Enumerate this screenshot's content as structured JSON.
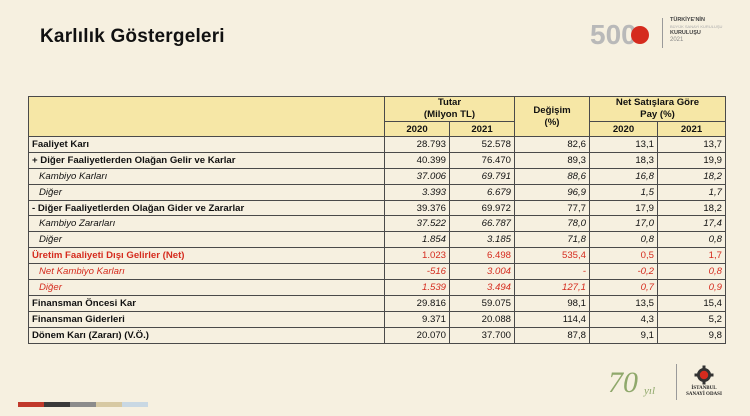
{
  "title": "Karlılık Göstergeleri",
  "logo500": {
    "number": "500",
    "line1": "TÜRKİYE'NİN",
    "line2": "BÜYÜK SANAYİ KURULUŞU",
    "line3": "KURULUŞU",
    "year": "2021"
  },
  "table": {
    "headers": {
      "tutar": "Tutar",
      "tutar_unit": "(Milyon TL)",
      "degisim": "Değişim",
      "degisim_unit": "(%)",
      "pay": "Net Satışlara Göre",
      "pay_unit": "Pay (%)",
      "y2020": "2020",
      "y2021": "2021",
      "p2020": "2020",
      "p2021": "2021"
    },
    "rows": [
      {
        "label": "Faaliyet Karı",
        "t2020": "28.793",
        "t2021": "52.578",
        "degisim": "82,6",
        "p2020": "13,1",
        "p2021": "13,7"
      },
      {
        "label": "+ Diğer Faaliyetlerden Olağan Gelir ve Karlar",
        "t2020": "40.399",
        "t2021": "76.470",
        "degisim": "89,3",
        "p2020": "18,3",
        "p2021": "19,9"
      },
      {
        "label": "Kambiyo Karları",
        "t2020": "37.006",
        "t2021": "69.791",
        "degisim": "88,6",
        "p2020": "16,8",
        "p2021": "18,2"
      },
      {
        "label": "Diğer",
        "t2020": "3.393",
        "t2021": "6.679",
        "degisim": "96,9",
        "p2020": "1,5",
        "p2021": "1,7"
      },
      {
        "label": "- Diğer Faaliyetlerden Olağan Gider ve Zararlar",
        "t2020": "39.376",
        "t2021": "69.972",
        "degisim": "77,7",
        "p2020": "17,9",
        "p2021": "18,2"
      },
      {
        "label": "Kambiyo Zararları",
        "t2020": "37.522",
        "t2021": "66.787",
        "degisim": "78,0",
        "p2020": "17,0",
        "p2021": "17,4"
      },
      {
        "label": "Diğer",
        "t2020": "1.854",
        "t2021": "3.185",
        "degisim": "71,8",
        "p2020": "0,8",
        "p2021": "0,8"
      },
      {
        "label": "Üretim Faaliyeti Dışı Gelirler (Net)",
        "t2020": "1.023",
        "t2021": "6.498",
        "degisim": "535,4",
        "p2020": "0,5",
        "p2021": "1,7"
      },
      {
        "label": "Net Kambiyo Karları",
        "t2020": "-516",
        "t2021": "3.004",
        "degisim": "-",
        "p2020": "-0,2",
        "p2021": "0,8"
      },
      {
        "label": "Diğer",
        "t2020": "1.539",
        "t2021": "3.494",
        "degisim": "127,1",
        "p2020": "0,7",
        "p2021": "0,9"
      },
      {
        "label": "Finansman Öncesi Kar",
        "t2020": "29.816",
        "t2021": "59.075",
        "degisim": "98,1",
        "p2020": "13,5",
        "p2021": "15,4"
      },
      {
        "label": "Finansman Giderleri",
        "t2020": "9.371",
        "t2021": "20.088",
        "degisim": "114,4",
        "p2020": "4,3",
        "p2021": "5,2"
      },
      {
        "label": "Dönem Karı (Zararı) (V.Ö.)",
        "t2020": "20.070",
        "t2021": "37.700",
        "degisim": "87,8",
        "p2020": "9,1",
        "p2021": "9,8"
      }
    ]
  },
  "logo70": {
    "number": "70",
    "suffix": "yıl"
  },
  "iso": {
    "line1": "İSTANBUL",
    "line2": "SANAYİ ODASI"
  },
  "colors": {
    "background": "#f6f0e0",
    "header_fill": "#f6e7a6",
    "red_text": "#d52b1e",
    "strip": [
      "#c0392b",
      "#3a3a3a",
      "#8c8c8c",
      "#d7c9a3",
      "#c9d8e3"
    ]
  }
}
